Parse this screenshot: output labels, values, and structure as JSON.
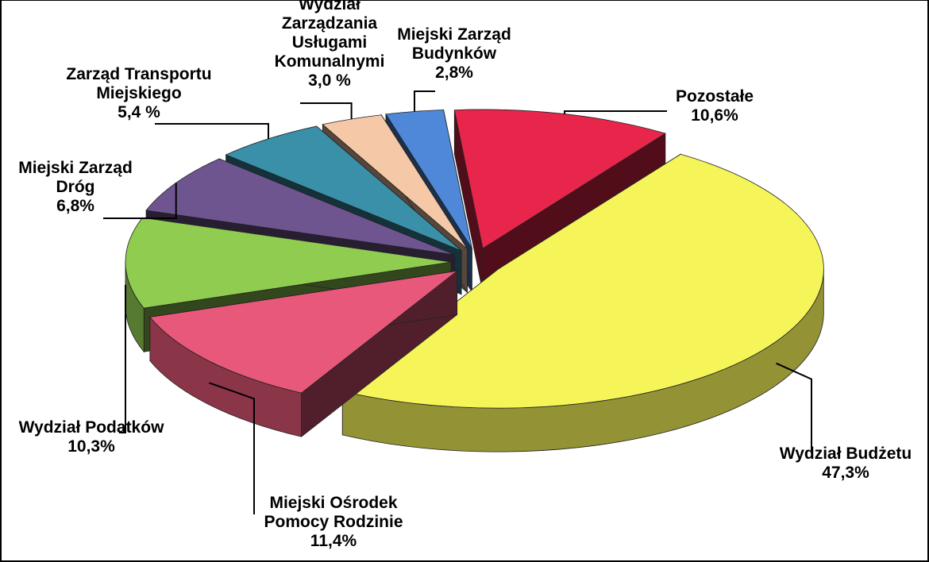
{
  "chart_data": {
    "type": "pie3d",
    "categories": [
      "Pozostałe",
      "Wydział Budżetu",
      "Miejski Ośrodek\nPomocy Rodzinie",
      "Wydział Podatków",
      "Miejski Zarząd\nDróg",
      "Zarząd Transportu\nMiejskiego",
      "Wydział\nZarządzania\nUsługami\nKomunalnymi",
      "Miejski Zarząd\nBudynków"
    ],
    "values": [
      10.6,
      47.3,
      11.4,
      10.3,
      6.8,
      5.4,
      3.0,
      2.8
    ],
    "value_labels": [
      "10,6%",
      "47,3%",
      "11,4%",
      "10,3%",
      "6,8%",
      "5,4 %",
      "3,0 %",
      "2,8%"
    ],
    "colors": [
      "#e8254a",
      "#f5f55a",
      "#e8587a",
      "#8fcc50",
      "#6f5590",
      "#3a90a8",
      "#f5c8a8",
      "#4f88d8"
    ]
  }
}
